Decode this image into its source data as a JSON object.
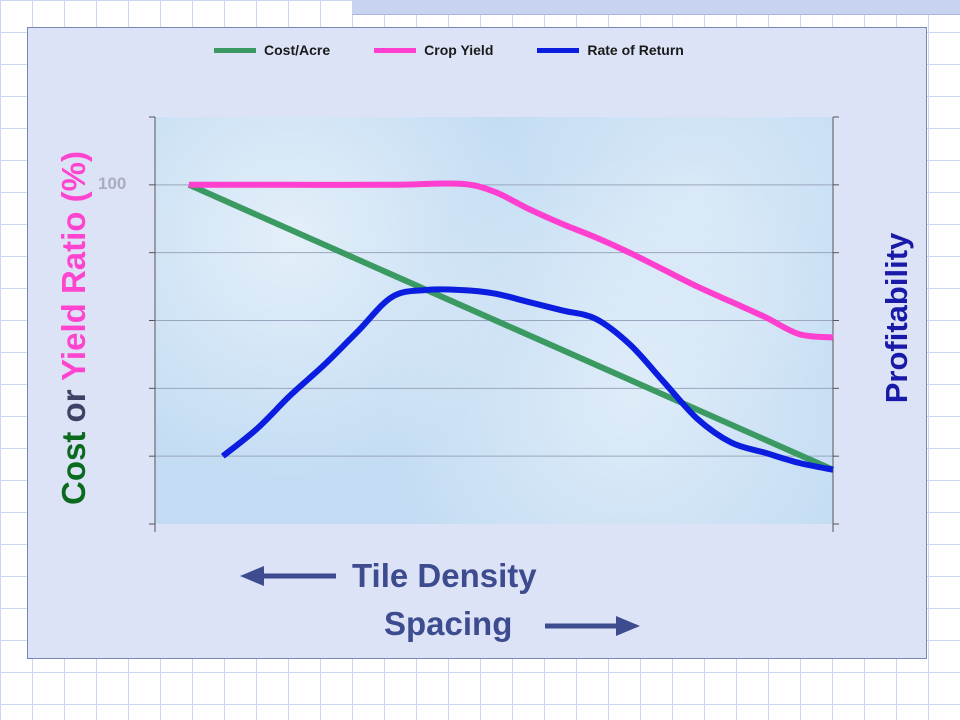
{
  "legend": {
    "cost": "Cost/Acre",
    "yield": "Crop Yield",
    "return": "Rate of Return"
  },
  "axis": {
    "left_cost": "Cost",
    "left_or": " or ",
    "left_yield": "Yield Ratio",
    "left_pct": " (%)",
    "right": "Profitability",
    "tick_100": "100"
  },
  "arrows": {
    "density": "Tile Density",
    "spacing": "Spacing"
  },
  "colors": {
    "cost": "#3a9a62",
    "yield": "#ff3fcf",
    "return": "#0b1ee0",
    "axis_dark_green": "#0a6b1f",
    "axis_pink": "#ff45cf",
    "axis_grey": "#3c4466",
    "profit": "#1a1aa8",
    "arrow": "#3d4b8f"
  },
  "chart_data": {
    "type": "line",
    "x": [
      0.05,
      0.1,
      0.15,
      0.2,
      0.25,
      0.3,
      0.35,
      0.4,
      0.45,
      0.5,
      0.55,
      0.6,
      0.65,
      0.7,
      0.75,
      0.8,
      0.85,
      0.9,
      0.95,
      1.0
    ],
    "ylim": [
      0,
      120
    ],
    "y_ticks": [
      100
    ],
    "series": [
      {
        "name": "Cost/Acre",
        "color": "#3a9a62",
        "x": [
          0.05,
          1.0
        ],
        "values": [
          100,
          16
        ]
      },
      {
        "name": "Crop Yield",
        "color": "#ff3fcf",
        "x": [
          0.05,
          0.2,
          0.35,
          0.45,
          0.5,
          0.55,
          0.6,
          0.65,
          0.7,
          0.75,
          0.8,
          0.85,
          0.9,
          0.95,
          1.0
        ],
        "values": [
          100,
          100,
          100,
          100.3,
          98,
          93,
          88.5,
          84.5,
          80,
          75,
          70,
          65.5,
          61,
          56,
          55
        ]
      },
      {
        "name": "Rate of Return",
        "color": "#0b1ee0",
        "x": [
          0.1,
          0.15,
          0.2,
          0.25,
          0.3,
          0.35,
          0.4,
          0.45,
          0.5,
          0.55,
          0.6,
          0.65,
          0.7,
          0.75,
          0.8,
          0.85,
          0.9,
          0.95,
          1.0
        ],
        "values": [
          20,
          28,
          38,
          47,
          57,
          67,
          69,
          69,
          68,
          65.5,
          63,
          60.5,
          53,
          42,
          31,
          24,
          21,
          18,
          16
        ]
      }
    ],
    "grid": true,
    "legend_position": "top"
  }
}
